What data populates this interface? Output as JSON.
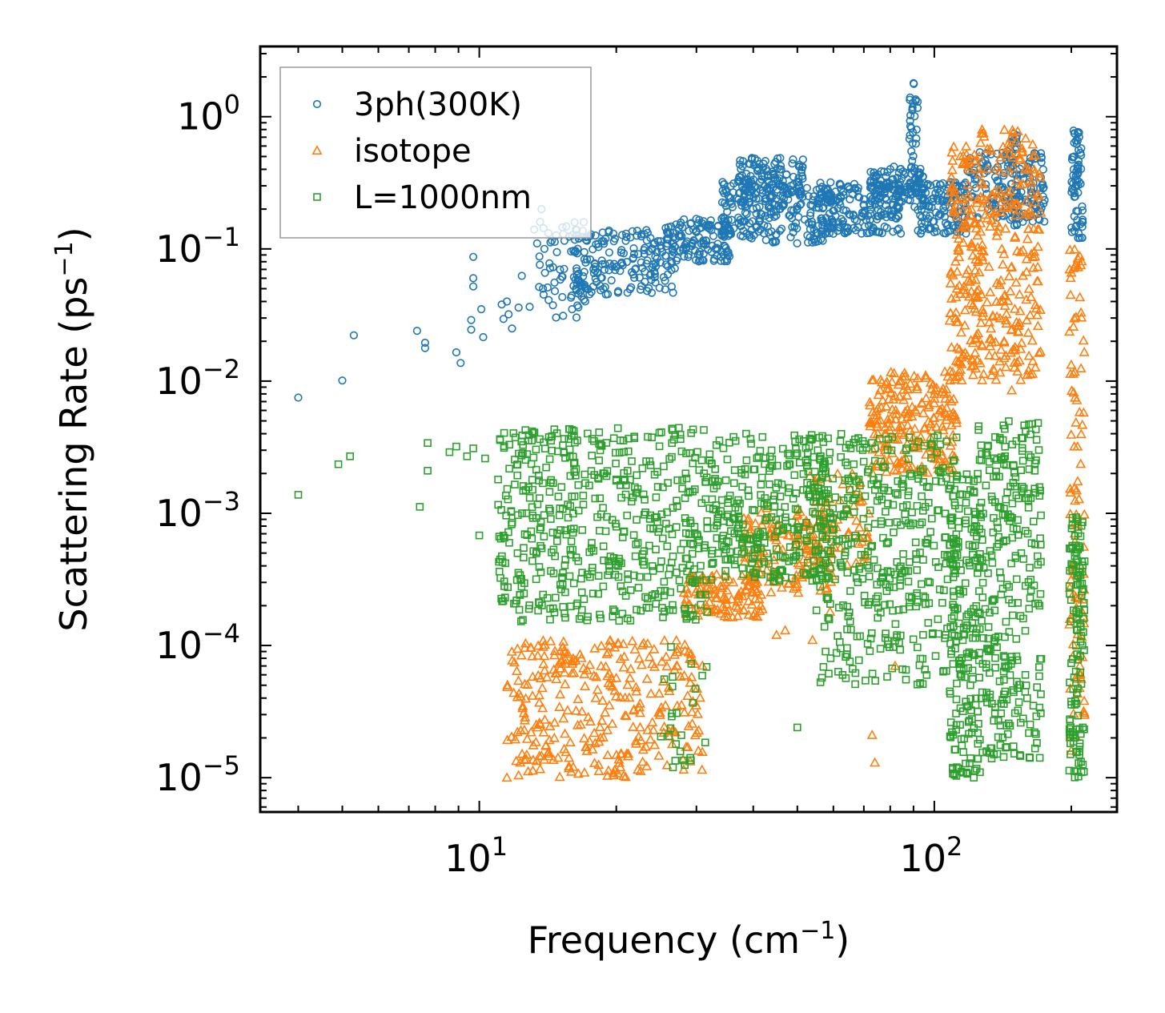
{
  "chart_data": {
    "type": "scatter",
    "title": "",
    "xlabel": {
      "text": "Frequency (cm",
      "sup": "−1",
      "tail": ")"
    },
    "ylabel": {
      "text": "Scattering Rate (ps",
      "sup": "−1",
      "tail": ")"
    },
    "xscale": "log",
    "yscale": "log",
    "xlim": [
      3.3,
      252
    ],
    "ylim": [
      5.5e-06,
      3.4
    ],
    "x_major_ticks": [
      {
        "value": 10,
        "base": "10",
        "exp": "1"
      },
      {
        "value": 100,
        "base": "10",
        "exp": "2"
      }
    ],
    "y_major_ticks": [
      {
        "value": 1e-05,
        "base": "10",
        "exp": "−5"
      },
      {
        "value": 0.0001,
        "base": "10",
        "exp": "−4"
      },
      {
        "value": 0.001,
        "base": "10",
        "exp": "−3"
      },
      {
        "value": 0.01,
        "base": "10",
        "exp": "−2"
      },
      {
        "value": 0.1,
        "base": "10",
        "exp": "−1"
      },
      {
        "value": 1,
        "base": "10",
        "exp": "0"
      }
    ],
    "legend_position": "top-left",
    "series": [
      {
        "name": "3ph(300K)",
        "marker": "circle",
        "color": "#1f77b4",
        "points": [
          [
            4.0,
            0.0075
          ],
          [
            5.0,
            0.0101
          ],
          [
            5.3,
            0.0222
          ],
          [
            7.3,
            0.024
          ],
          [
            7.6,
            0.0195
          ],
          [
            7.6,
            0.0178
          ],
          [
            8.9,
            0.0165
          ],
          [
            9.1,
            0.0137
          ],
          [
            9.6,
            0.0245
          ],
          [
            9.6,
            0.029
          ],
          [
            9.7,
            0.052
          ],
          [
            9.7,
            0.06
          ],
          [
            9.7,
            0.087
          ],
          [
            10.1,
            0.035
          ],
          [
            10.2,
            0.0215
          ],
          [
            11.2,
            0.038
          ],
          [
            11.3,
            0.0295
          ],
          [
            11.5,
            0.04
          ],
          [
            11.6,
            0.032
          ],
          [
            11.8,
            0.025
          ],
          [
            12.2,
            0.036
          ],
          [
            12.4,
            0.0625
          ],
          [
            12.9,
            0.0365
          ],
          [
            13.2,
            0.14
          ],
          [
            13.4,
            0.11
          ],
          [
            13.6,
            0.16
          ],
          [
            13.7,
            0.2
          ],
          [
            13.8,
            0.05
          ],
          [
            13.9,
            0.1
          ],
          [
            14.2,
            0.041
          ]
        ],
        "bands": [
          {
            "x": [
              13.5,
              18
            ],
            "y": [
              0.03,
              0.16
            ],
            "n": 70
          },
          {
            "x": [
              16,
              27
            ],
            "y": [
              0.045,
              0.14
            ],
            "n": 170
          },
          {
            "x": [
              25,
              36
            ],
            "y": [
              0.08,
              0.17
            ],
            "n": 130
          },
          {
            "x": [
              34,
              42
            ],
            "y": [
              0.12,
              0.35
            ],
            "n": 90
          },
          {
            "x": [
              37,
              52
            ],
            "y": [
              0.2,
              0.5
            ],
            "n": 150
          },
          {
            "x": [
              42,
              60
            ],
            "y": [
              0.11,
              0.3
            ],
            "n": 110
          },
          {
            "x": [
              55,
              85
            ],
            "y": [
              0.13,
              0.32
            ],
            "n": 170
          },
          {
            "x": [
              72,
              95
            ],
            "y": [
              0.2,
              0.42
            ],
            "n": 110
          },
          {
            "x": [
              88,
              92
            ],
            "y": [
              0.25,
              1.8
            ],
            "n": 40
          },
          {
            "x": [
              92,
              118
            ],
            "y": [
              0.13,
              0.32
            ],
            "n": 130
          },
          {
            "x": [
              118,
              175
            ],
            "y": [
              0.15,
              0.55
            ],
            "n": 170
          },
          {
            "x": [
              148,
              152
            ],
            "y": [
              0.15,
              0.8
            ],
            "n": 30
          },
          {
            "x": [
              200,
              212
            ],
            "y": [
              0.12,
              0.8
            ],
            "n": 70
          }
        ]
      },
      {
        "name": "isotope",
        "marker": "triangle",
        "color": "#ff7f0e",
        "points": [
          [
            11.5,
            1e-05
          ],
          [
            12.3,
            1.3e-05
          ],
          [
            45,
            0.00012
          ],
          [
            47,
            0.00013
          ],
          [
            54,
            0.00011
          ],
          [
            59,
            0.00018
          ],
          [
            73,
            2.1e-05
          ],
          [
            74,
            1.3e-05
          ],
          [
            82,
            7e-05
          ],
          [
            76,
            0.0085
          ],
          [
            148,
            0.0085
          ],
          [
            200,
            1.6e-05
          ]
        ],
        "bands": [
          {
            "x": [
              11.5,
              31
            ],
            "y": [
              1e-05,
              0.00011
            ],
            "n": 320
          },
          {
            "x": [
              28,
              42
            ],
            "y": [
              0.00016,
              0.00035
            ],
            "n": 110
          },
          {
            "x": [
              38,
              60
            ],
            "y": [
              0.00025,
              0.0011
            ],
            "n": 140
          },
          {
            "x": [
              52,
              72
            ],
            "y": [
              0.0004,
              0.002
            ],
            "n": 70
          },
          {
            "x": [
              72,
              112
            ],
            "y": [
              0.002,
              0.012
            ],
            "n": 210
          },
          {
            "x": [
              108,
              126
            ],
            "y": [
              0.01,
              0.6
            ],
            "n": 150
          },
          {
            "x": [
              126,
              172
            ],
            "y": [
              0.01,
              0.8
            ],
            "n": 230
          },
          {
            "x": [
              198,
              214
            ],
            "y": [
              2e-05,
              0.1
            ],
            "n": 100
          }
        ]
      },
      {
        "name": "L=1000nm",
        "marker": "square",
        "color": "#2ca02c",
        "points": [
          [
            4.0,
            0.00138
          ],
          [
            4.9,
            0.00235
          ],
          [
            5.2,
            0.0027
          ],
          [
            7.4,
            0.00112
          ],
          [
            7.7,
            0.0034
          ],
          [
            7.7,
            0.0021
          ],
          [
            8.6,
            0.0029
          ],
          [
            8.9,
            0.0032
          ],
          [
            9.4,
            0.0027
          ],
          [
            9.7,
            0.0031
          ],
          [
            10.0,
            0.00068
          ],
          [
            10.3,
            0.0026
          ],
          [
            11.0,
            0.0018
          ],
          [
            50,
            2.4e-05
          ],
          [
            126,
            1.1e-05
          ]
        ],
        "bands": [
          {
            "x": [
              11,
              32
            ],
            "y": [
              0.00015,
              0.0045
            ],
            "n": 520
          },
          {
            "x": [
              25,
              32
            ],
            "y": [
              1.1e-05,
              0.0001
            ],
            "n": 25
          },
          {
            "x": [
              32,
              60
            ],
            "y": [
              0.0003,
              0.004
            ],
            "n": 320
          },
          {
            "x": [
              55,
              112
            ],
            "y": [
              5e-05,
              0.004
            ],
            "n": 400
          },
          {
            "x": [
              108,
              125
            ],
            "y": [
              1e-05,
              0.002
            ],
            "n": 180
          },
          {
            "x": [
              125,
              172
            ],
            "y": [
              1.3e-05,
              0.005
            ],
            "n": 300
          },
          {
            "x": [
              198,
              214
            ],
            "y": [
              1e-05,
              0.001
            ],
            "n": 120
          }
        ]
      }
    ]
  }
}
